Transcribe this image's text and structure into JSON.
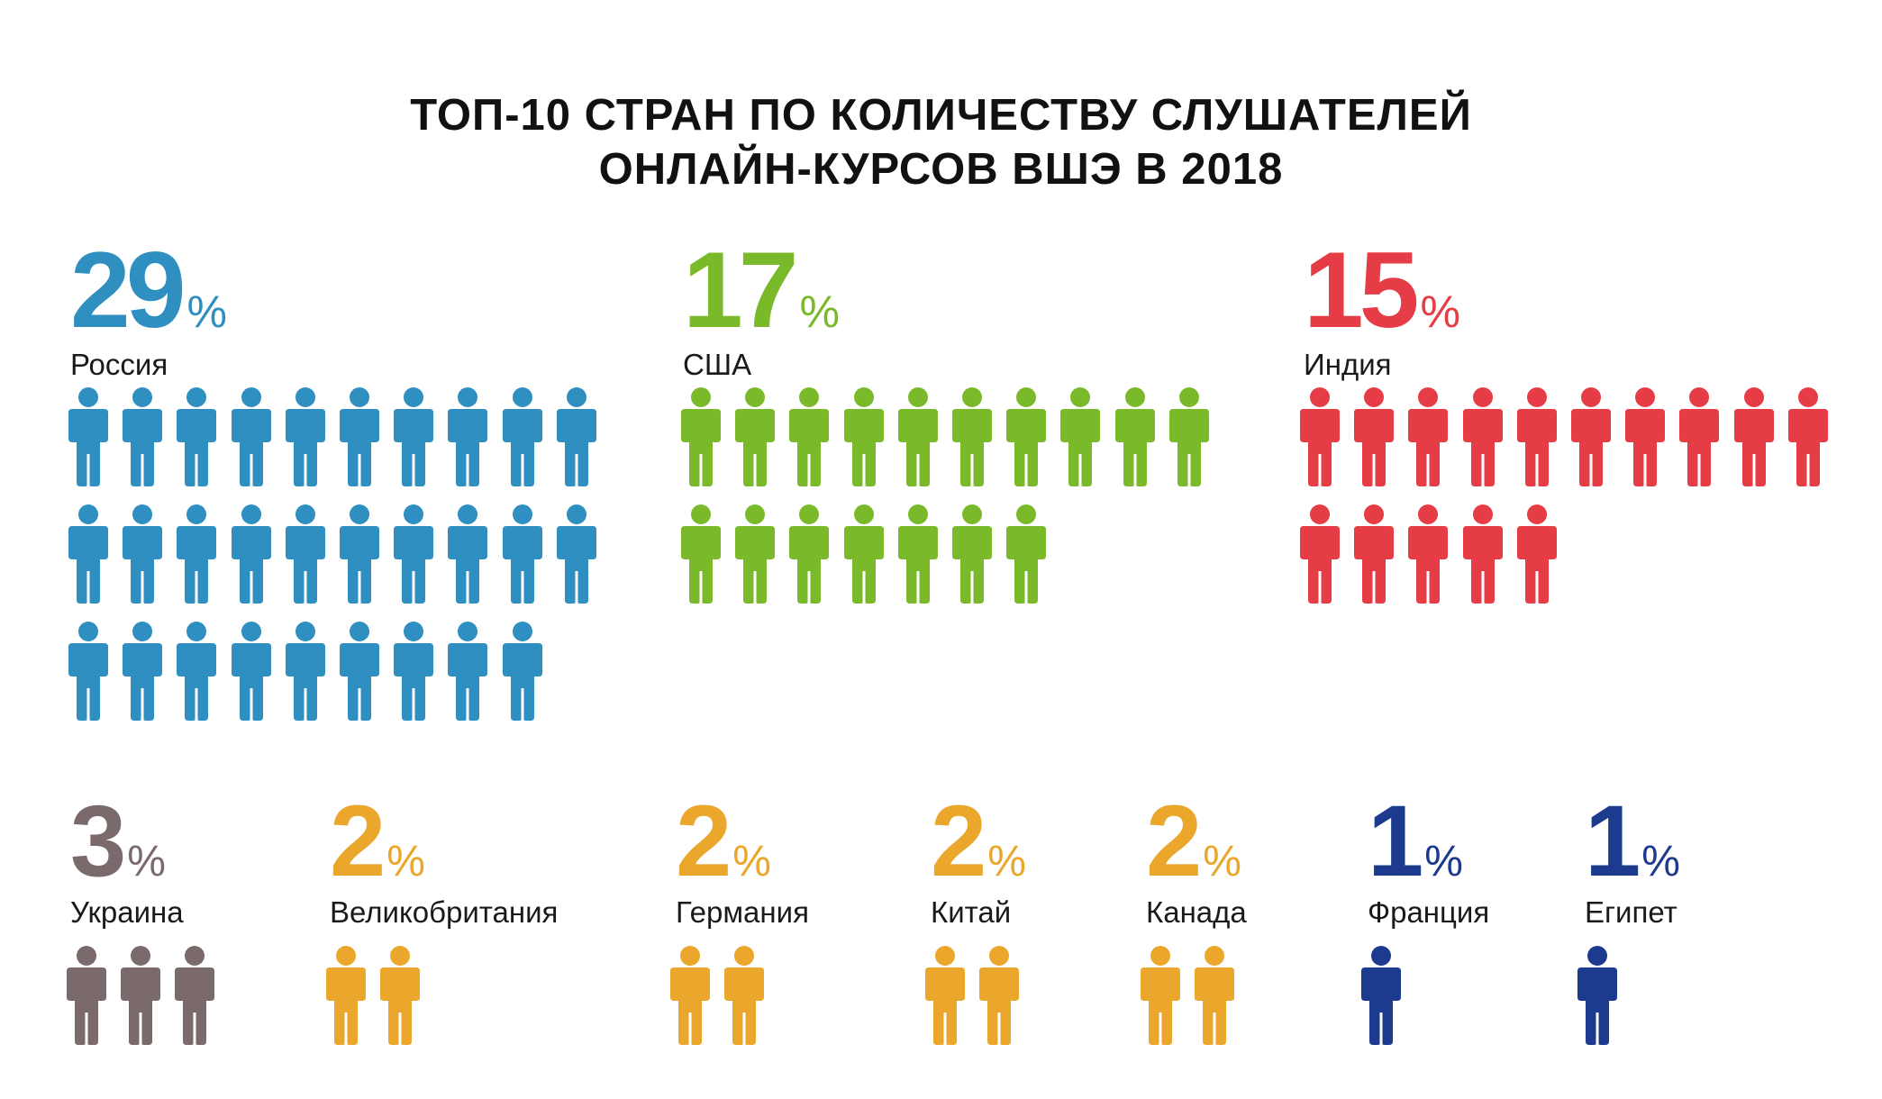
{
  "title": {
    "line1": "ТОП-10 СТРАН ПО КОЛИЧЕСТВУ СЛУШАТЕЛЕЙ",
    "line2": "ОНЛАЙН-КУРСОВ ВШЭ В 2018"
  },
  "chart_data": {
    "type": "pictograph",
    "title": "ТОП-10 СТРАН ПО КОЛИЧЕСТВУ СЛУШАТЕЛЕЙ ОНЛАЙН-КУРСОВ ВШЭ В 2018",
    "unit": "%",
    "icon": "person-icon",
    "icons_per_row": 10,
    "categories": [
      "Россия",
      "США",
      "Индия",
      "Украина",
      "Великобритания",
      "Германия",
      "Китай",
      "Канада",
      "Франция",
      "Египет"
    ],
    "values": [
      29,
      17,
      15,
      3,
      2,
      2,
      2,
      2,
      1,
      1
    ],
    "colors": [
      "#2f8fc1",
      "#7aba2a",
      "#e53c45",
      "#7a6a6c",
      "#eaa72c",
      "#eaa72c",
      "#eaa72c",
      "#eaa72c",
      "#1c3a8e",
      "#1c3a8e"
    ]
  },
  "countries": [
    {
      "name": "Россия",
      "value": "29",
      "sign": "%"
    },
    {
      "name": "США",
      "value": "17",
      "sign": "%"
    },
    {
      "name": "Индия",
      "value": "15",
      "sign": "%"
    },
    {
      "name": "Украина",
      "value": "3",
      "sign": "%"
    },
    {
      "name": "Великобритания",
      "value": "2",
      "sign": "%"
    },
    {
      "name": "Германия",
      "value": "2",
      "sign": "%"
    },
    {
      "name": "Китай",
      "value": "2",
      "sign": "%"
    },
    {
      "name": "Канада",
      "value": "2",
      "sign": "%"
    },
    {
      "name": "Франция",
      "value": "1",
      "sign": "%"
    },
    {
      "name": "Египет",
      "value": "1",
      "sign": "%"
    }
  ]
}
